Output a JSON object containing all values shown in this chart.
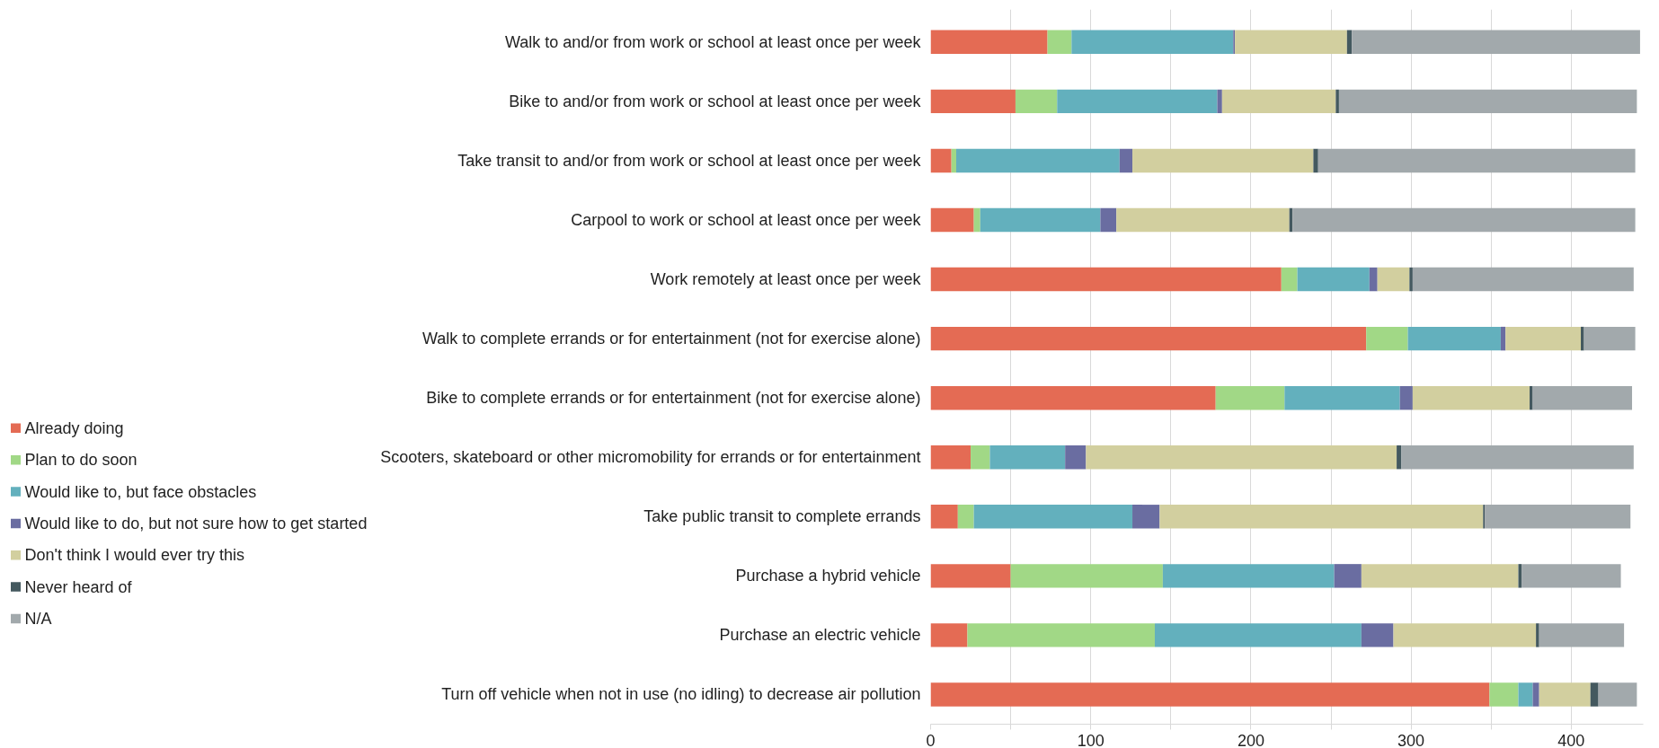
{
  "chart_data": {
    "type": "bar",
    "orientation": "horizontal",
    "stacked": true,
    "categories": [
      "Walk to and/or from work or school at least once per week",
      "Bike to and/or from work or school at least once per week",
      "Take transit to and/or from work or school at least once per week",
      "Carpool to work or school at least once per week",
      "Work remotely at least once per week",
      "Walk to complete errands or for entertainment (not for exercise alone)",
      "Bike to complete errands or for entertainment (not for exercise alone)",
      "Scooters, skateboard or other micromobility for errands or for entertainment",
      "Take public transit to complete errands",
      "Purchase a hybrid vehicle",
      "Purchase an electric vehicle",
      "Turn off vehicle when not in use (no idling) to decrease air pollution"
    ],
    "series": [
      {
        "name": "Already doing",
        "color": "#e46b54",
        "values": [
          73,
          53,
          13,
          27,
          219,
          272,
          178,
          25,
          17,
          50,
          23,
          349
        ]
      },
      {
        "name": "Plan to do soon",
        "color": "#a1d886",
        "values": [
          15,
          26,
          3,
          4,
          10,
          26,
          43,
          12,
          10,
          95,
          117,
          18
        ]
      },
      {
        "name": "Would like to, but face obstacles",
        "color": "#63b0bd",
        "values": [
          101,
          100,
          102,
          75,
          45,
          58,
          72,
          47,
          99,
          107,
          129,
          9
        ]
      },
      {
        "name": "Would like to do, but not sure how to get started",
        "color": "#6a6da1",
        "values": [
          1,
          3,
          8,
          10,
          5,
          3,
          8,
          13,
          17,
          17,
          20,
          4
        ]
      },
      {
        "name": "Don't think I would ever try this",
        "color": "#d2cf9f",
        "values": [
          70,
          71,
          113,
          108,
          20,
          47,
          73,
          194,
          202,
          98,
          89,
          32
        ]
      },
      {
        "name": "Never heard of",
        "color": "#44595f",
        "values": [
          3,
          2,
          3,
          2,
          2,
          2,
          2,
          3,
          1,
          2,
          2,
          5
        ]
      },
      {
        "name": "N/A",
        "color": "#a2a9ac",
        "values": [
          180,
          186,
          198,
          214,
          138,
          32,
          62,
          145,
          91,
          62,
          53,
          24
        ]
      }
    ],
    "xlim": [
      0,
      445
    ],
    "xticks": [
      0,
      {
        "value": 50,
        "label": null
      },
      100,
      {
        "value": 150,
        "label": null
      },
      200,
      {
        "value": 250,
        "label": null
      },
      300,
      {
        "value": 350,
        "label": null
      },
      400
    ],
    "grid": "x",
    "legend": "left"
  }
}
